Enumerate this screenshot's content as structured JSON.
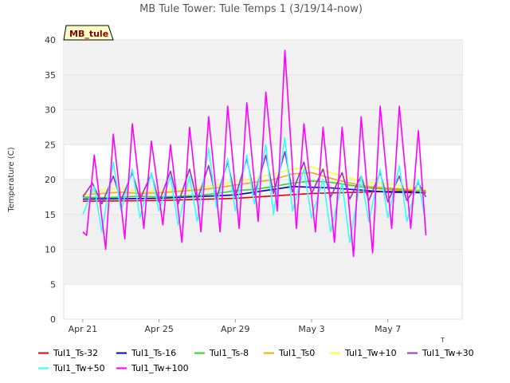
{
  "chart_data": {
    "type": "line",
    "title": "MB Tule Tower: Tule Temps 1 (3/19/14-now)",
    "ylabel": "Temperature (C)",
    "xlabel": "",
    "tag_label": "MB_tule",
    "corner_mark": "T",
    "x_start": "2014-03-21",
    "x_end": "2014-05-10",
    "ylim": [
      0,
      40
    ],
    "y_ticks": [
      0,
      5,
      10,
      15,
      20,
      25,
      30,
      35,
      40
    ],
    "x_ticks": [
      {
        "label": "Apr 21",
        "date": "2014-04-21"
      },
      {
        "label": "Apr 25",
        "date": "2014-04-25"
      },
      {
        "label": "Apr 29",
        "date": "2014-04-29"
      },
      {
        "label": "May 3",
        "date": "2014-05-03"
      },
      {
        "label": "May 7",
        "date": "2014-05-07"
      }
    ],
    "grid": "horizontal bands",
    "legend_position": "bottom",
    "series": [
      {
        "name": "Tul1_Ts-32",
        "color": "#e60000",
        "dates": [
          "2014-04-21",
          "2014-04-25",
          "2014-04-29",
          "2014-05-03",
          "2014-05-07",
          "2014-05-09"
        ],
        "values": [
          16.9,
          17.0,
          17.3,
          18.0,
          18.3,
          18.3
        ]
      },
      {
        "name": "Tul1_Ts-16",
        "color": "#0000cc",
        "dates": [
          "2014-04-21",
          "2014-04-25",
          "2014-04-29",
          "2014-05-02",
          "2014-05-04",
          "2014-05-07",
          "2014-05-09"
        ],
        "values": [
          17.2,
          17.3,
          17.8,
          19.0,
          18.8,
          18.2,
          18.1
        ]
      },
      {
        "name": "Tul1_Ts-8",
        "color": "#22dd22",
        "dates": [
          "2014-04-21",
          "2014-04-22",
          "2014-04-23",
          "2014-04-24",
          "2014-04-25",
          "2014-04-26",
          "2014-04-27",
          "2014-04-28",
          "2014-04-29",
          "2014-04-30",
          "2014-05-01",
          "2014-05-02",
          "2014-05-03",
          "2014-05-04",
          "2014-05-05",
          "2014-05-06",
          "2014-05-07",
          "2014-05-08",
          "2014-05-09"
        ],
        "values": [
          17.5,
          17.4,
          17.5,
          17.6,
          17.5,
          17.6,
          17.7,
          18.0,
          18.4,
          18.6,
          19.0,
          19.5,
          19.8,
          19.6,
          19.2,
          18.8,
          18.6,
          18.5,
          18.4
        ]
      },
      {
        "name": "Tul1_Ts0",
        "color": "#ffa500",
        "dates": [
          "2014-04-21",
          "2014-04-22",
          "2014-04-23",
          "2014-04-24",
          "2014-04-25",
          "2014-04-26",
          "2014-04-27",
          "2014-04-28",
          "2014-04-29",
          "2014-04-30",
          "2014-05-01",
          "2014-05-02",
          "2014-05-03",
          "2014-05-04",
          "2014-05-05",
          "2014-05-06",
          "2014-05-07",
          "2014-05-08",
          "2014-05-09"
        ],
        "values": [
          17.8,
          18.0,
          18.2,
          18.0,
          18.1,
          18.3,
          18.5,
          18.8,
          19.2,
          19.6,
          20.0,
          20.8,
          21.0,
          20.2,
          19.5,
          19.0,
          18.8,
          18.6,
          18.2
        ]
      },
      {
        "name": "Tul1_Tw+10",
        "color": "#ffff33",
        "dates": [
          "2014-04-21",
          "2014-04-22",
          "2014-04-23",
          "2014-04-24",
          "2014-04-25",
          "2014-04-26",
          "2014-04-27",
          "2014-04-28",
          "2014-04-29",
          "2014-04-30",
          "2014-05-01",
          "2014-05-02",
          "2014-05-03",
          "2014-05-04",
          "2014-05-05",
          "2014-05-06",
          "2014-05-07",
          "2014-05-08",
          "2014-05-09"
        ],
        "values": [
          17.6,
          18.5,
          18.8,
          18.2,
          18.4,
          18.6,
          18.8,
          19.2,
          19.8,
          20.2,
          20.8,
          21.5,
          21.8,
          21.0,
          20.2,
          19.6,
          19.4,
          19.0,
          18.6
        ]
      },
      {
        "name": "Tul1_Tw+30",
        "color": "#9933cc",
        "dates": [
          "2014-04-21",
          "2014-04-21.5",
          "2014-04-22",
          "2014-04-22.6",
          "2014-04-23",
          "2014-04-23.6",
          "2014-04-24",
          "2014-04-24.6",
          "2014-04-25",
          "2014-04-25.6",
          "2014-04-26",
          "2014-04-26.6",
          "2014-04-27",
          "2014-04-27.6",
          "2014-04-28",
          "2014-04-28.6",
          "2014-04-29",
          "2014-04-29.6",
          "2014-04-30",
          "2014-04-30.6",
          "2014-05-01",
          "2014-05-01.6",
          "2014-05-02",
          "2014-05-02.6",
          "2014-05-03",
          "2014-05-03.6",
          "2014-05-04",
          "2014-05-04.6",
          "2014-05-05",
          "2014-05-05.6",
          "2014-05-06",
          "2014-05-06.6",
          "2014-05-07",
          "2014-05-07.6",
          "2014-05-08",
          "2014-05-08.6",
          "2014-05-09"
        ],
        "values": [
          17.5,
          19.5,
          16.5,
          20.5,
          17.0,
          21.0,
          17.2,
          20.8,
          16.8,
          21.2,
          16.5,
          21.5,
          17.0,
          22.0,
          17.2,
          22.5,
          17.5,
          23.0,
          17.8,
          23.5,
          18.0,
          24.0,
          18.2,
          22.5,
          18.0,
          21.5,
          17.5,
          21.0,
          17.2,
          20.5,
          17.0,
          21.0,
          16.8,
          20.5,
          17.0,
          19.5,
          17.5
        ]
      },
      {
        "name": "Tul1_Tw+50",
        "color": "#33ffff",
        "dates": [
          "2014-04-21",
          "2014-04-21.6",
          "2014-04-22",
          "2014-04-22.6",
          "2014-04-23",
          "2014-04-23.6",
          "2014-04-24",
          "2014-04-24.6",
          "2014-04-25",
          "2014-04-25.6",
          "2014-04-26",
          "2014-04-26.6",
          "2014-04-27",
          "2014-04-27.6",
          "2014-04-28",
          "2014-04-28.6",
          "2014-04-29",
          "2014-04-29.6",
          "2014-04-30",
          "2014-04-30.6",
          "2014-05-01",
          "2014-05-01.6",
          "2014-05-02",
          "2014-05-02.6",
          "2014-05-03",
          "2014-05-03.6",
          "2014-05-04",
          "2014-05-04.6",
          "2014-05-05",
          "2014-05-05.6",
          "2014-05-06",
          "2014-05-06.6",
          "2014-05-07",
          "2014-05-07.6",
          "2014-05-08",
          "2014-05-08.6",
          "2014-05-09"
        ],
        "values": [
          15.0,
          19.0,
          12.5,
          22.5,
          15.5,
          21.5,
          14.5,
          21.0,
          15.5,
          20.5,
          13.5,
          20.5,
          14.0,
          24.5,
          16.0,
          23.0,
          15.5,
          23.5,
          16.5,
          25.0,
          15.0,
          26.0,
          15.5,
          21.5,
          14.5,
          20.0,
          12.5,
          19.5,
          11.0,
          20.5,
          14.0,
          21.5,
          14.5,
          22.0,
          14.0,
          20.0,
          13.5
        ]
      },
      {
        "name": "Tul1_Tw+100",
        "color": "#ff00ff",
        "dates": [
          "2014-04-21",
          "2014-04-21.2",
          "2014-04-21.6",
          "2014-04-22.2",
          "2014-04-22.6",
          "2014-04-23.2",
          "2014-04-23.6",
          "2014-04-24.2",
          "2014-04-24.6",
          "2014-04-25.2",
          "2014-04-25.6",
          "2014-04-26.2",
          "2014-04-26.6",
          "2014-04-27.2",
          "2014-04-27.6",
          "2014-04-28.2",
          "2014-04-28.6",
          "2014-04-29.2",
          "2014-04-29.6",
          "2014-04-30.2",
          "2014-04-30.6",
          "2014-05-01.2",
          "2014-05-01.6",
          "2014-05-02.2",
          "2014-05-02.6",
          "2014-05-03.2",
          "2014-05-03.6",
          "2014-05-04.2",
          "2014-05-04.6",
          "2014-05-05.2",
          "2014-05-05.6",
          "2014-05-06.2",
          "2014-05-06.6",
          "2014-05-07.2",
          "2014-05-07.6",
          "2014-05-08.2",
          "2014-05-08.6",
          "2014-05-09"
        ],
        "values": [
          12.5,
          12.0,
          23.5,
          10.0,
          26.5,
          11.5,
          28.0,
          13.0,
          25.5,
          13.5,
          25.0,
          11.0,
          27.5,
          12.5,
          29.0,
          12.5,
          30.5,
          13.0,
          31.0,
          14.0,
          32.5,
          15.5,
          38.5,
          13.0,
          28.0,
          12.5,
          27.5,
          11.0,
          27.5,
          9.0,
          29.0,
          9.5,
          30.5,
          13.0,
          30.5,
          13.0,
          27.0,
          12.0
        ]
      }
    ]
  }
}
